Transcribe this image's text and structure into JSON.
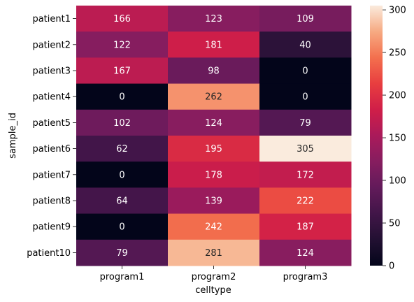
{
  "chart_data": {
    "type": "heatmap",
    "title": "",
    "xlabel": "celltype",
    "ylabel": "sample_id",
    "columns": [
      "program1",
      "program2",
      "program3"
    ],
    "rows": [
      "patient1",
      "patient2",
      "patient3",
      "patient4",
      "patient5",
      "patient6",
      "patient7",
      "patient8",
      "patient9",
      "patient10"
    ],
    "values": [
      [
        166,
        123,
        109
      ],
      [
        122,
        181,
        40
      ],
      [
        167,
        98,
        0
      ],
      [
        0,
        262,
        0
      ],
      [
        102,
        124,
        79
      ],
      [
        62,
        195,
        305
      ],
      [
        0,
        178,
        172
      ],
      [
        64,
        139,
        222
      ],
      [
        0,
        242,
        187
      ],
      [
        79,
        281,
        124
      ]
    ],
    "value_range": [
      0,
      305
    ],
    "colormap": "rocket",
    "colorbar": {
      "ticks": [
        0,
        50,
        100,
        150,
        200,
        250,
        300
      ],
      "placement": "right"
    },
    "annotations": true
  }
}
